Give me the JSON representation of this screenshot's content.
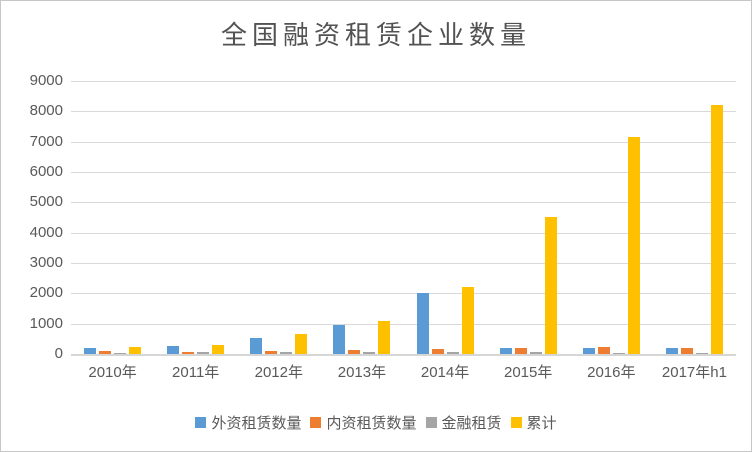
{
  "chart_data": {
    "type": "bar",
    "title": "全国融资租赁企业数量",
    "categories": [
      "2010年",
      "2011年",
      "2012年",
      "2013年",
      "2014年",
      "2015年",
      "2016年",
      "2017年h1"
    ],
    "series": [
      {
        "name": "外资租赁数量",
        "color": "#5B9BD5",
        "values": [
          185,
          255,
          530,
          940,
          2020,
          185,
          200,
          185
        ]
      },
      {
        "name": "内资租赁数量",
        "color": "#ED7D31",
        "values": [
          85,
          55,
          100,
          120,
          155,
          210,
          225,
          205
        ]
      },
      {
        "name": "金融租赁",
        "color": "#A5A5A5",
        "values": [
          45,
          55,
          60,
          75,
          75,
          55,
          40,
          30
        ]
      },
      {
        "name": "累计",
        "color": "#FFC000",
        "values": [
          220,
          300,
          650,
          1100,
          2200,
          4500,
          7140,
          8220
        ]
      }
    ],
    "ylim": [
      0,
      9000
    ],
    "yticks": [
      0,
      1000,
      2000,
      3000,
      4000,
      5000,
      6000,
      7000,
      8000,
      9000
    ],
    "xlabel": "",
    "ylabel": "",
    "grid": true,
    "legend_position": "bottom"
  },
  "colors": {
    "gridline": "#d9d9d9",
    "axis_text": "#595959",
    "title_text": "#525252",
    "frame_border": "#c6c6c6",
    "background": "#ffffff"
  }
}
